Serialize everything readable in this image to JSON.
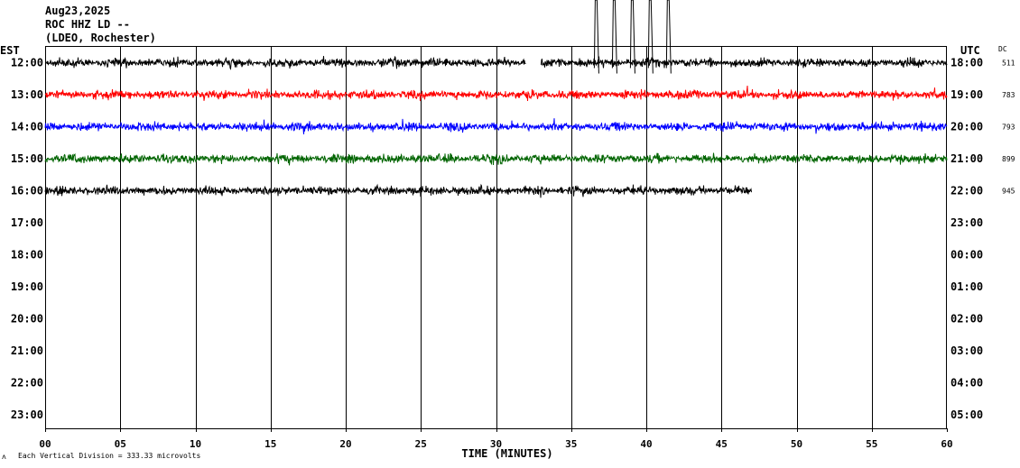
{
  "header": {
    "date": "Aug23,2025",
    "station": "ROC HHZ LD --",
    "network": "(LDEO, Rochester)"
  },
  "footer": {
    "scale_note": "Each Vertical Division =  333.33 microvolts",
    "corner_mark": "ʌ"
  },
  "chart_data": {
    "type": "line",
    "title": "",
    "xlabel": "TIME (MINUTES)",
    "left_axis_label": "EST",
    "right_axis_label": "UTC",
    "dc_label": "DC",
    "x_ticks": [
      "00",
      "05",
      "10",
      "15",
      "20",
      "25",
      "30",
      "35",
      "40",
      "45",
      "50",
      "55",
      "60"
    ],
    "xlim": [
      0,
      60
    ],
    "rows": [
      {
        "est": "12:00",
        "utc": "18:00",
        "dc": "511"
      },
      {
        "est": "13:00",
        "utc": "19:00",
        "dc": "783"
      },
      {
        "est": "14:00",
        "utc": "20:00",
        "dc": "793"
      },
      {
        "est": "15:00",
        "utc": "21:00",
        "dc": "899"
      },
      {
        "est": "16:00",
        "utc": "22:00",
        "dc": "945"
      },
      {
        "est": "17:00",
        "utc": "23:00",
        "dc": ""
      },
      {
        "est": "18:00",
        "utc": "00:00",
        "dc": ""
      },
      {
        "est": "19:00",
        "utc": "01:00",
        "dc": ""
      },
      {
        "est": "20:00",
        "utc": "02:00",
        "dc": ""
      },
      {
        "est": "21:00",
        "utc": "03:00",
        "dc": ""
      },
      {
        "est": "22:00",
        "utc": "04:00",
        "dc": ""
      },
      {
        "est": "23:00",
        "utc": "05:00",
        "dc": ""
      }
    ],
    "series": [
      {
        "row": 0,
        "color": "#000000",
        "start_min": 0,
        "end_min": 60,
        "amplitude": 0.45,
        "gap_min": [
          32,
          33
        ]
      },
      {
        "row": 1,
        "color": "#ff0000",
        "start_min": 0,
        "end_min": 60,
        "amplitude": 0.45
      },
      {
        "row": 2,
        "color": "#0000ff",
        "start_min": 0,
        "end_min": 60,
        "amplitude": 0.45
      },
      {
        "row": 3,
        "color": "#006400",
        "start_min": 0,
        "end_min": 60,
        "amplitude": 0.45
      },
      {
        "row": 4,
        "color": "#000000",
        "start_min": 0,
        "end_min": 47,
        "amplitude": 0.45
      }
    ],
    "clipped_spikes_min": [
      36.6,
      37.8,
      39.0,
      40.2,
      41.4
    ],
    "grid": "vertical every 5 minutes"
  }
}
